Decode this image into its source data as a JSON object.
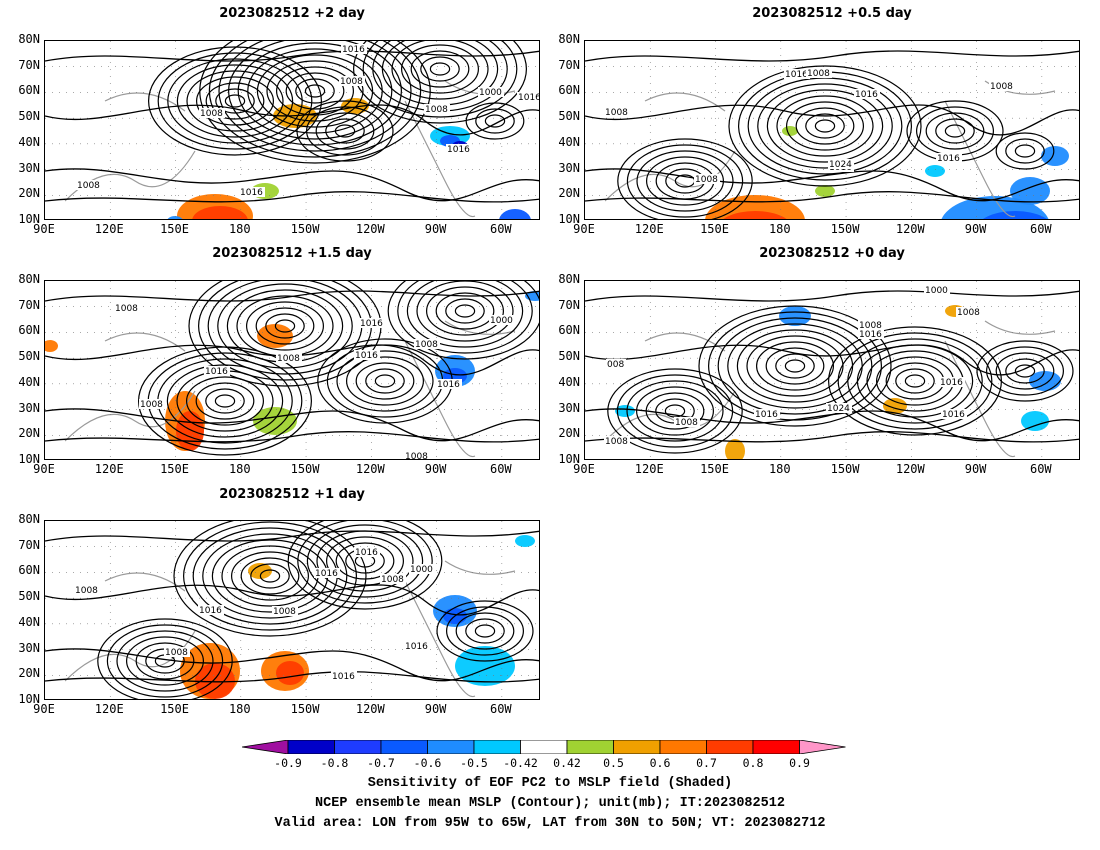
{
  "panels": [
    {
      "title": "2023082512 +2 day"
    },
    {
      "title": "2023082512 +0.5 day"
    },
    {
      "title": "2023082512 +1.5 day"
    },
    {
      "title": "2023082512 +0 day"
    },
    {
      "title": "2023082512 +1 day"
    }
  ],
  "lat_labels": [
    "80N",
    "70N",
    "60N",
    "50N",
    "40N",
    "30N",
    "20N",
    "10N"
  ],
  "lon_labels": [
    "90E",
    "120E",
    "150E",
    "180",
    "150W",
    "120W",
    "90W",
    "60W"
  ],
  "contour_labels": {
    "p0": [
      "1016",
      "1008",
      "1000",
      "1016",
      "1008",
      "1008",
      "1016",
      "1016",
      "1008"
    ],
    "p1": [
      "1016",
      "1008",
      "1016",
      "1008",
      "1016",
      "1008",
      "1016",
      "1024",
      "1008"
    ],
    "p2": [
      "1008",
      "1016",
      "1000",
      "1008",
      "1016",
      "1008",
      "1016",
      "1016",
      "1008",
      "1008"
    ],
    "p3": [
      "1000",
      "1008",
      "1008",
      "1016",
      "008",
      "1016",
      "1024",
      "1016",
      "1016",
      "1008",
      "1008"
    ],
    "p4": [
      "1016",
      "1016",
      "1000",
      "1008",
      "1008",
      "1008",
      "1016",
      "1016",
      "1008",
      "1016"
    ]
  },
  "colorbar": {
    "levels": [
      "-0.9",
      "-0.8",
      "-0.7",
      "-0.6",
      "-0.5",
      "-0.42",
      "0.42",
      "0.5",
      "0.6",
      "0.7",
      "0.8",
      "0.9"
    ],
    "colors": [
      "#a00fa0",
      "#0000c8",
      "#1e3cff",
      "#0a5aff",
      "#1f8cff",
      "#00c8ff",
      "#ffffff",
      "#a0d232",
      "#f0a000",
      "#ff7800",
      "#ff3c00",
      "#ff0000",
      "#ff96c8"
    ]
  },
  "caption": {
    "line1": "Sensitivity of EOF PC2 to MSLP field (Shaded)",
    "line2": "NCEP ensemble mean MSLP (Contour); unit(mb); IT:2023082512",
    "line3": "Valid area: LON from 95W to 65W, LAT from 30N to 50N; VT: 2023082712"
  }
}
